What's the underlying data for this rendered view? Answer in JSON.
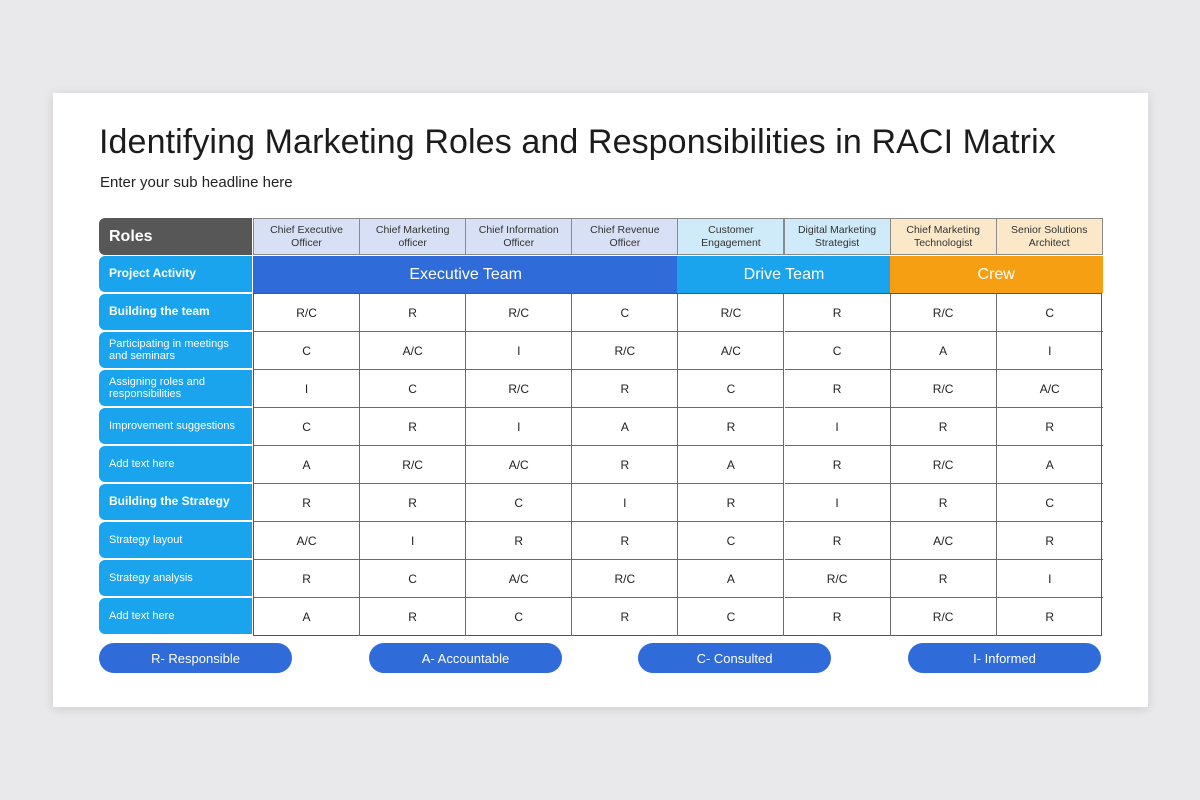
{
  "title": "Identifying Marketing Roles and Responsibilities in RACI Matrix",
  "subtitle": "Enter your sub headline here",
  "roles_label": "Roles",
  "columns": [
    {
      "label": "Chief Executive Officer",
      "bg": "#d8e0f6"
    },
    {
      "label": "Chief Marketing officer",
      "bg": "#d8e0f6"
    },
    {
      "label": "Chief Information Officer",
      "bg": "#d8e0f6"
    },
    {
      "label": "Chief Revenue Officer",
      "bg": "#d8e0f6"
    },
    {
      "label": "Customer Engagement",
      "bg": "#cfeaf9"
    },
    {
      "label": "Digital Marketing Strategist",
      "bg": "#cfeaf9"
    },
    {
      "label": "Chief Marketing Technologist",
      "bg": "#fbe8c9"
    },
    {
      "label": "Senior Solutions Architect",
      "bg": "#fbe8c9"
    }
  ],
  "teams": [
    {
      "label": "Executive Team",
      "span": 4,
      "color": "#2f6bd9"
    },
    {
      "label": "Drive Team",
      "span": 2,
      "color": "#1aa4ee"
    },
    {
      "label": "Crew",
      "span": 2,
      "color": "#f79f12"
    }
  ],
  "rows": [
    {
      "label": "Project Activity",
      "bold": true
    },
    {
      "label": "Building the team",
      "bold": true,
      "values": [
        "R/C",
        "R",
        "R/C",
        "C",
        "R/C",
        "R",
        "R/C",
        "C"
      ]
    },
    {
      "label": "Participating in meetings and seminars",
      "bold": false,
      "values": [
        "C",
        "A/C",
        "I",
        "R/C",
        "A/C",
        "C",
        "A",
        "I"
      ]
    },
    {
      "label": "Assigning roles and responsibilities",
      "bold": false,
      "values": [
        "I",
        "C",
        "R/C",
        "R",
        "C",
        "R",
        "R/C",
        "A/C"
      ]
    },
    {
      "label": "Improvement suggestions",
      "bold": false,
      "values": [
        "C",
        "R",
        "I",
        "A",
        "R",
        "I",
        "R",
        "R"
      ]
    },
    {
      "label": "Add text here",
      "bold": false,
      "values": [
        "A",
        "R/C",
        "A/C",
        "R",
        "A",
        "R",
        "R/C",
        "A"
      ]
    },
    {
      "label": "Building the Strategy",
      "bold": true,
      "values": [
        "R",
        "R",
        "C",
        "I",
        "R",
        "I",
        "R",
        "C"
      ]
    },
    {
      "label": "Strategy layout",
      "bold": false,
      "values": [
        "A/C",
        "I",
        "R",
        "R",
        "C",
        "R",
        "A/C",
        "R"
      ]
    },
    {
      "label": "Strategy analysis",
      "bold": false,
      "values": [
        "R",
        "C",
        "A/C",
        "R/C",
        "A",
        "R/C",
        "R",
        "I"
      ]
    },
    {
      "label": "Add text here",
      "bold": false,
      "values": [
        "A",
        "R",
        "C",
        "R",
        "C",
        "R",
        "R/C",
        "R"
      ]
    }
  ],
  "legend": [
    "R- Responsible",
    "A- Accountable",
    "C- Consulted",
    "I- Informed"
  ]
}
